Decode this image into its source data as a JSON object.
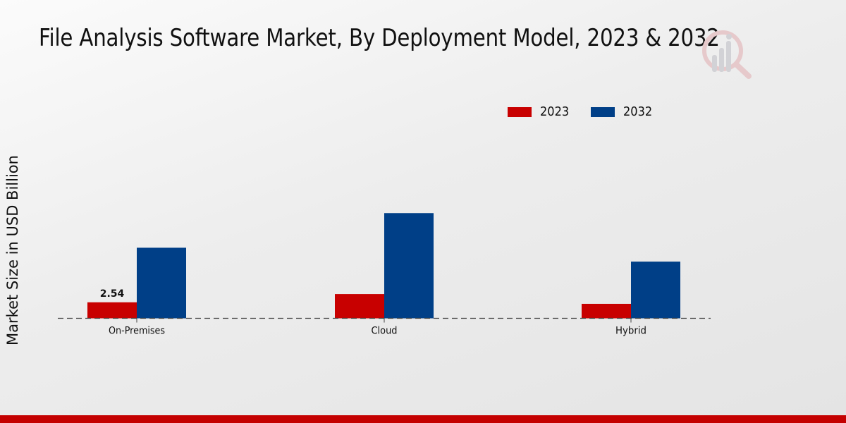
{
  "chart_data": {
    "type": "bar",
    "title": "File Analysis Software Market, By Deployment Model, 2023 & 2032",
    "xlabel": "",
    "ylabel": "Market Size in USD Billion",
    "categories": [
      "On-Premises",
      "Cloud",
      "Hybrid"
    ],
    "series": [
      {
        "name": "2023",
        "color": "#c80000",
        "values": [
          2.54,
          3.85,
          2.3
        ]
      },
      {
        "name": "2032",
        "color": "#003f87",
        "values": [
          11.2,
          16.7,
          9.0
        ]
      }
    ],
    "data_labels": [
      {
        "series": "2023",
        "category": "On-Premises",
        "text": "2.54"
      }
    ],
    "ylim": [
      0,
      20
    ],
    "grid": false,
    "baseline_style": "dashed",
    "legend_position": "top-right"
  },
  "branding": {
    "logo_icon": "magnifier-bar-chart-logo",
    "accent_band_color": "#c40000"
  }
}
